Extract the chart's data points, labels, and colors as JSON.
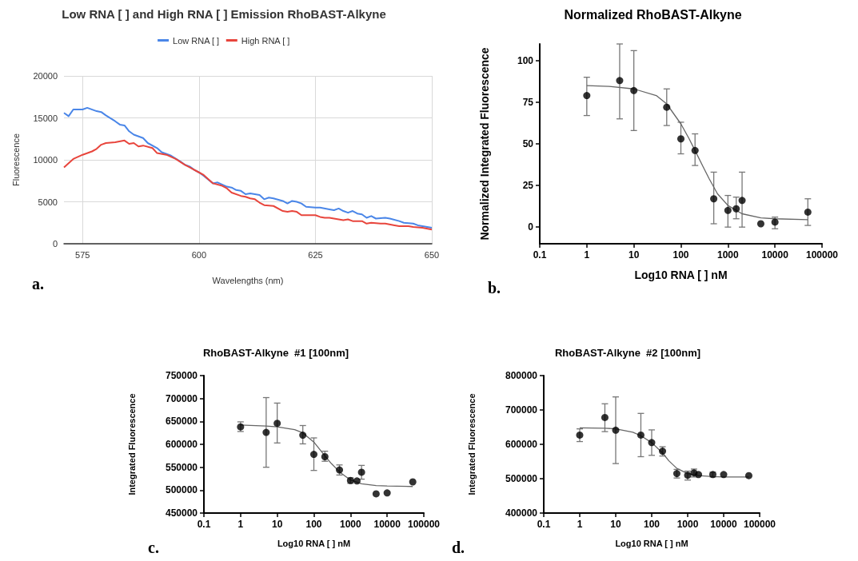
{
  "chart_data": [
    {
      "type": "line",
      "title": "Low RNA [ ] and High RNA [ ] Emission RhoBAST-Alkyne",
      "xlabel": "Wavelengths (nm)",
      "ylabel": "Fluorescence",
      "xlim": [
        571,
        650
      ],
      "xticks": [
        575,
        600,
        625,
        650
      ],
      "ylim": [
        0,
        20000
      ],
      "yticks": [
        0,
        5000,
        10000,
        15000,
        20000
      ],
      "grid": true,
      "legend": "top",
      "marker": "none",
      "line_style": "solid",
      "annotations": [
        "a."
      ],
      "series": [
        {
          "name": "Low RNA [ ]",
          "color": "#4a86e8",
          "x": [
            571,
            572,
            573,
            575,
            576,
            578,
            579,
            580,
            582,
            583,
            584,
            585,
            586,
            588,
            589,
            591,
            592,
            594,
            596,
            597,
            598,
            599,
            600,
            601,
            603,
            604,
            606,
            607,
            608,
            609,
            610,
            611,
            613,
            614,
            615,
            616,
            618,
            619,
            620,
            621,
            622,
            623,
            625,
            626,
            628,
            629,
            630,
            631,
            632,
            633,
            634,
            635,
            636,
            637,
            638,
            640,
            641,
            643,
            644,
            646,
            647,
            649,
            650
          ],
          "values": [
            15600,
            15200,
            16000,
            16000,
            16200,
            15800,
            15700,
            15300,
            14600,
            14200,
            14100,
            13400,
            13000,
            12600,
            12000,
            11400,
            10900,
            10500,
            9800,
            9400,
            9200,
            8800,
            8500,
            8100,
            7200,
            7300,
            6800,
            6700,
            6400,
            6300,
            5900,
            6000,
            5800,
            5300,
            5500,
            5400,
            5100,
            4800,
            5100,
            5000,
            4800,
            4400,
            4300,
            4300,
            4100,
            4000,
            4200,
            3900,
            3700,
            3900,
            3600,
            3500,
            3100,
            3300,
            3000,
            3100,
            3000,
            2700,
            2500,
            2400,
            2200,
            2000,
            1900
          ]
        },
        {
          "name": "High RNA [ ]",
          "color": "#e8453c",
          "x": [
            571,
            573,
            575,
            577,
            578,
            579,
            580,
            582,
            584,
            585,
            586,
            587,
            588,
            590,
            591,
            593,
            595,
            597,
            598,
            600,
            601,
            603,
            605,
            606,
            607,
            609,
            610,
            611,
            612,
            613,
            614,
            616,
            618,
            619,
            620,
            621,
            622,
            624,
            625,
            626,
            627,
            628,
            629,
            631,
            632,
            633,
            635,
            636,
            637,
            639,
            640,
            642,
            643,
            645,
            646,
            648,
            650
          ],
          "values": [
            9100,
            10100,
            10600,
            11000,
            11300,
            11800,
            12000,
            12100,
            12300,
            11900,
            12000,
            11600,
            11700,
            11400,
            10800,
            10600,
            10100,
            9400,
            9100,
            8500,
            8200,
            7200,
            6900,
            6600,
            6100,
            5700,
            5600,
            5400,
            5300,
            4900,
            4600,
            4500,
            3900,
            3800,
            3900,
            3800,
            3400,
            3400,
            3400,
            3200,
            3100,
            3100,
            3000,
            2800,
            2900,
            2700,
            2700,
            2400,
            2500,
            2400,
            2400,
            2200,
            2100,
            2100,
            2000,
            1900,
            1700
          ]
        }
      ]
    },
    {
      "type": "scatter",
      "title": "Normalized RhoBAST-Alkyne",
      "xlabel": "Log10 RNA [ ] nM",
      "ylabel": "Normalized Integrated Fluorescence",
      "log": "x",
      "xlim": [
        0.1,
        100000
      ],
      "xticks": [
        0.1,
        1,
        10,
        100,
        1000,
        10000,
        100000
      ],
      "ylim": [
        -10,
        110
      ],
      "yticks": [
        0,
        25,
        50,
        75,
        100
      ],
      "grid": false,
      "marker": "circle",
      "annotations": [
        "b."
      ],
      "series": [
        {
          "color": "#000000",
          "x": [
            1,
            5,
            10,
            50,
            100,
            200,
            500,
            1000,
            1500,
            2000,
            5000,
            10000,
            50000
          ],
          "values": [
            79,
            88,
            82,
            72,
            53,
            46,
            17,
            10,
            11,
            16,
            2,
            3,
            9
          ],
          "errors": [
            [
              67,
              90
            ],
            [
              65,
              110
            ],
            [
              58,
              106
            ],
            [
              61,
              83
            ],
            [
              44,
              63
            ],
            [
              37,
              56
            ],
            [
              2,
              33
            ],
            [
              0,
              19
            ],
            [
              5,
              18
            ],
            [
              0,
              33
            ],
            null,
            [
              -1,
              6
            ],
            [
              1,
              17
            ]
          ]
        },
        {
          "type": "line",
          "marker": "none",
          "color": "#666666",
          "x": [
            1,
            3,
            10,
            30,
            50,
            100,
            150,
            200,
            300,
            400,
            600,
            1000,
            2000,
            5000,
            10000,
            50000
          ],
          "values": [
            85,
            84.5,
            83,
            79,
            74,
            62,
            53,
            46,
            36,
            29,
            20,
            13,
            8,
            5.5,
            5,
            4.5
          ]
        }
      ]
    },
    {
      "type": "scatter",
      "title": "RhoBAST-Alkyne  #1 [100nm]",
      "xlabel": "Log10 RNA [ ] nM",
      "ylabel": "Integrated Fluorescence",
      "log": "x",
      "xlim": [
        0.1,
        100000
      ],
      "xticks": [
        0.1,
        1,
        10,
        100,
        1000,
        10000,
        100000
      ],
      "ylim": [
        450000,
        750000
      ],
      "yticks": [
        450000,
        500000,
        550000,
        600000,
        650000,
        700000,
        750000
      ],
      "grid": false,
      "marker": "circle",
      "annotations": [
        "c."
      ],
      "series": [
        {
          "color": "#000000",
          "x": [
            1,
            5,
            10,
            50,
            100,
            200,
            500,
            1000,
            1500,
            2000,
            5000,
            10000,
            50000
          ],
          "values": [
            638000,
            626000,
            646000,
            620000,
            578000,
            573000,
            544000,
            521000,
            520000,
            539000,
            492000,
            494000,
            518000
          ],
          "errors": [
            [
              628000,
              649000
            ],
            [
              550000,
              702000
            ],
            [
              603000,
              690000
            ],
            [
              601000,
              641000
            ],
            [
              543000,
              614000
            ],
            [
              563000,
              585000
            ],
            [
              533000,
              555000
            ],
            [
              515000,
              527000
            ],
            null,
            [
              524000,
              554000
            ],
            null,
            null,
            null
          ]
        },
        {
          "type": "line",
          "marker": "none",
          "color": "#666666",
          "x": [
            1,
            5,
            10,
            30,
            50,
            100,
            200,
            300,
            500,
            1000,
            2000,
            5000,
            10000,
            50000
          ],
          "values": [
            642000,
            640000,
            638000,
            632000,
            625000,
            605000,
            575000,
            558000,
            540000,
            522000,
            514000,
            510000,
            509000,
            508000
          ]
        }
      ]
    },
    {
      "type": "scatter",
      "title": "RhoBAST-Alkyne  #2 [100nm]",
      "xlabel": "Log10 RNA [ ] nM",
      "ylabel": "Integrated Fluorescence",
      "log": "x",
      "xlim": [
        0.1,
        100000
      ],
      "xticks": [
        0.1,
        1,
        10,
        100,
        1000,
        10000,
        100000
      ],
      "ylim": [
        400000,
        800000
      ],
      "yticks": [
        400000,
        500000,
        600000,
        700000,
        800000
      ],
      "grid": false,
      "marker": "circle",
      "annotations": [
        "d."
      ],
      "series": [
        {
          "color": "#000000",
          "x": [
            1,
            5,
            10,
            50,
            100,
            200,
            500,
            1000,
            1500,
            2000,
            5000,
            10000,
            50000
          ],
          "values": [
            627000,
            678000,
            641000,
            627000,
            605000,
            580000,
            515000,
            510000,
            517000,
            512000,
            512000,
            512000,
            509000
          ],
          "errors": [
            [
              608000,
              645000
            ],
            [
              637000,
              718000
            ],
            [
              544000,
              738000
            ],
            [
              564000,
              690000
            ],
            [
              568000,
              642000
            ],
            [
              566000,
              593000
            ],
            [
              502000,
              527000
            ],
            [
              496000,
              522000
            ],
            [
              505000,
              528000
            ],
            null,
            [
              505000,
              519000
            ],
            null,
            null
          ]
        },
        {
          "type": "line",
          "marker": "none",
          "color": "#666666",
          "x": [
            1,
            5,
            10,
            30,
            50,
            100,
            200,
            300,
            500,
            1000,
            2000,
            5000,
            10000,
            50000
          ],
          "values": [
            648000,
            647000,
            645000,
            635000,
            625000,
            605000,
            575000,
            552000,
            530000,
            515000,
            509000,
            506000,
            505000,
            505000
          ]
        }
      ]
    }
  ]
}
